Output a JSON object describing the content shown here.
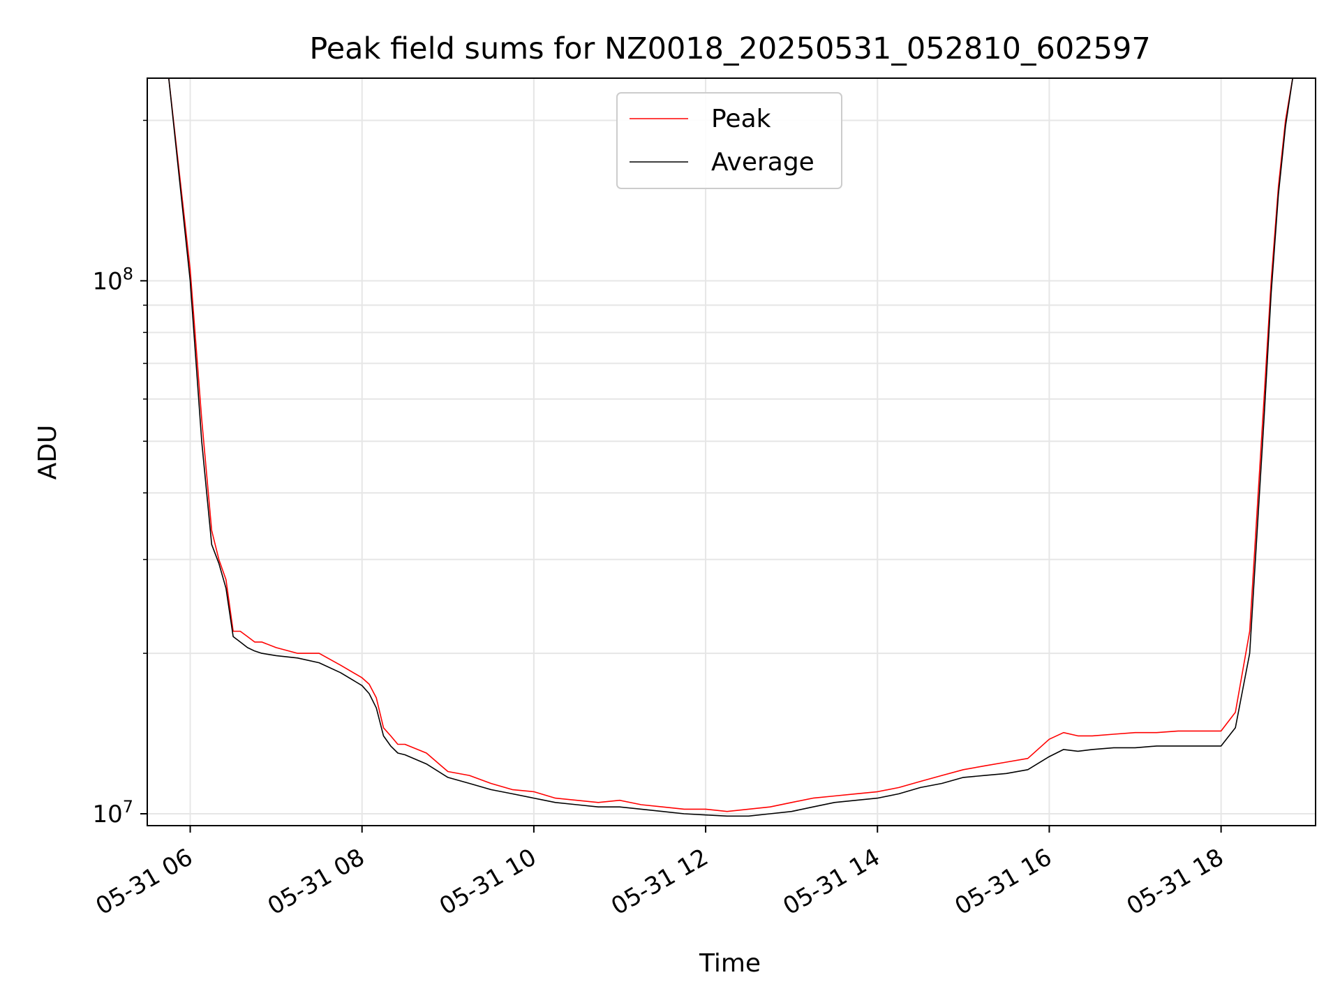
{
  "chart_data": {
    "type": "line",
    "title": "Peak field sums for NZ0018_20250531_052810_602597",
    "xlabel": "Time",
    "ylabel": "ADU",
    "y_scale": "log",
    "ylim": [
      9500000,
      240000000
    ],
    "xlim": [
      "2025-05-31 05:30",
      "2025-05-31 19:06"
    ],
    "x_ticks": [
      "2025-05-31 06:00",
      "2025-05-31 08:00",
      "2025-05-31 10:00",
      "2025-05-31 12:00",
      "2025-05-31 14:00",
      "2025-05-31 16:00",
      "2025-05-31 18:00"
    ],
    "x_tick_labels": [
      "05-31 06",
      "05-31 08",
      "05-31 10",
      "05-31 12",
      "05-31 14",
      "05-31 16",
      "05-31 18"
    ],
    "y_major_ticks": [
      10000000,
      100000000
    ],
    "y_major_tick_labels": [
      {
        "base": "10",
        "exp": "7"
      },
      {
        "base": "10",
        "exp": "8"
      }
    ],
    "y_minor_ticks": [
      20000000,
      30000000,
      40000000,
      50000000,
      60000000,
      70000000,
      80000000,
      90000000,
      200000000
    ],
    "grid": true,
    "legend_placement": "upper-center",
    "series": [
      {
        "name": "Peak",
        "color": "#ff0000",
        "x": [
          "05:30",
          "05:45",
          "06:00",
          "06:08",
          "06:15",
          "06:20",
          "06:25",
          "06:30",
          "06:35",
          "06:40",
          "06:45",
          "06:50",
          "07:00",
          "07:15",
          "07:30",
          "07:45",
          "08:00",
          "08:05",
          "08:10",
          "08:15",
          "08:20",
          "08:25",
          "08:30",
          "08:45",
          "09:00",
          "09:15",
          "09:30",
          "09:45",
          "10:00",
          "10:15",
          "10:30",
          "10:45",
          "11:00",
          "11:15",
          "11:30",
          "11:45",
          "12:00",
          "12:15",
          "12:30",
          "12:45",
          "13:00",
          "13:15",
          "13:30",
          "13:45",
          "14:00",
          "14:15",
          "14:30",
          "14:45",
          "15:00",
          "15:15",
          "15:30",
          "15:45",
          "16:00",
          "16:10",
          "16:20",
          "16:30",
          "16:45",
          "17:00",
          "17:15",
          "17:30",
          "17:45",
          "18:00",
          "18:10",
          "18:20",
          "18:30",
          "18:35",
          "18:40",
          "18:45",
          "18:50",
          "18:55",
          "19:00",
          "19:06"
        ],
        "y": [
          240000000,
          240000000,
          105000000,
          55000000,
          34000000,
          30000000,
          27500000,
          22000000,
          22000000,
          21500000,
          21000000,
          21000000,
          20500000,
          20000000,
          20000000,
          19000000,
          18000000,
          17500000,
          16500000,
          14500000,
          14000000,
          13500000,
          13500000,
          13000000,
          12000000,
          11800000,
          11400000,
          11100000,
          11000000,
          10700000,
          10600000,
          10500000,
          10600000,
          10400000,
          10300000,
          10200000,
          10200000,
          10100000,
          10200000,
          10300000,
          10500000,
          10700000,
          10800000,
          10900000,
          11000000,
          11200000,
          11500000,
          11800000,
          12100000,
          12300000,
          12500000,
          12700000,
          13800000,
          14200000,
          14000000,
          14000000,
          14100000,
          14200000,
          14200000,
          14300000,
          14300000,
          14300000,
          15500000,
          22000000,
          60000000,
          100000000,
          150000000,
          200000000,
          240000000,
          240000000,
          240000000,
          240000000
        ]
      },
      {
        "name": "Average",
        "color": "#000000",
        "x": [
          "05:30",
          "05:45",
          "06:00",
          "06:08",
          "06:15",
          "06:20",
          "06:25",
          "06:30",
          "06:35",
          "06:40",
          "06:45",
          "06:50",
          "07:00",
          "07:15",
          "07:30",
          "07:45",
          "08:00",
          "08:05",
          "08:10",
          "08:15",
          "08:20",
          "08:25",
          "08:30",
          "08:45",
          "09:00",
          "09:15",
          "09:30",
          "09:45",
          "10:00",
          "10:15",
          "10:30",
          "10:45",
          "11:00",
          "11:15",
          "11:30",
          "11:45",
          "12:00",
          "12:15",
          "12:30",
          "12:45",
          "13:00",
          "13:15",
          "13:30",
          "13:45",
          "14:00",
          "14:15",
          "14:30",
          "14:45",
          "15:00",
          "15:15",
          "15:30",
          "15:45",
          "16:00",
          "16:10",
          "16:20",
          "16:30",
          "16:45",
          "17:00",
          "17:15",
          "17:30",
          "17:45",
          "18:00",
          "18:10",
          "18:20",
          "18:30",
          "18:35",
          "18:40",
          "18:45",
          "18:50",
          "18:55",
          "19:00",
          "19:06"
        ],
        "y": [
          240000000,
          240000000,
          100000000,
          50000000,
          32000000,
          29500000,
          26500000,
          21500000,
          21000000,
          20500000,
          20200000,
          20000000,
          19800000,
          19600000,
          19200000,
          18400000,
          17400000,
          16800000,
          15800000,
          14000000,
          13400000,
          13000000,
          12900000,
          12400000,
          11700000,
          11400000,
          11100000,
          10900000,
          10700000,
          10500000,
          10400000,
          10300000,
          10300000,
          10200000,
          10100000,
          10000000,
          9950000,
          9900000,
          9900000,
          10000000,
          10100000,
          10300000,
          10500000,
          10600000,
          10700000,
          10900000,
          11200000,
          11400000,
          11700000,
          11800000,
          11900000,
          12100000,
          12800000,
          13200000,
          13100000,
          13200000,
          13300000,
          13300000,
          13400000,
          13400000,
          13400000,
          13400000,
          14500000,
          20000000,
          55000000,
          95000000,
          145000000,
          195000000,
          240000000,
          240000000,
          240000000,
          240000000
        ]
      }
    ]
  }
}
